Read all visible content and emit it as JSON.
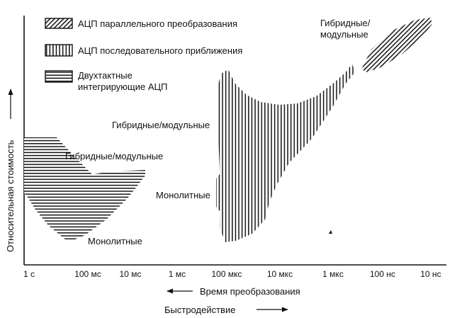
{
  "chart_data": {
    "type": "area",
    "ylabel": "Относительная стоимость",
    "xlabel_left": "Время преобразования",
    "xlabel_right": "Быстродействие",
    "x_ticks": [
      "1 с",
      "100 мс",
      "10 мс",
      "1 мс",
      "100 мкс",
      "10 мкс",
      "1 мкс",
      "100 нс",
      "10 нс"
    ],
    "legend": [
      {
        "name": "АЦП параллельного преобразования",
        "pattern": "diagonal"
      },
      {
        "name": "АЦП последовательного приближения",
        "pattern": "vertical"
      },
      {
        "name": "Двухтактные интегрирующие АЦП",
        "pattern": "horizontal"
      }
    ],
    "legend_lines": {
      "flash": [
        "АЦП параллельного преобразования"
      ],
      "sar": [
        "АЦП последовательного приближения"
      ],
      "integrating": [
        "Двухтактные",
        "интегрирующие АЦП"
      ]
    },
    "annotations": {
      "integ_hybrid": "Гибридные/модульные",
      "integ_mono": "Монолитные",
      "sar_hybrid": "Гибридные/модульные",
      "sar_mono": "Монолитные",
      "flash_hybrid": [
        "Гибридные/",
        "модульные"
      ]
    },
    "legend_placement": "top-left",
    "grid": false
  }
}
